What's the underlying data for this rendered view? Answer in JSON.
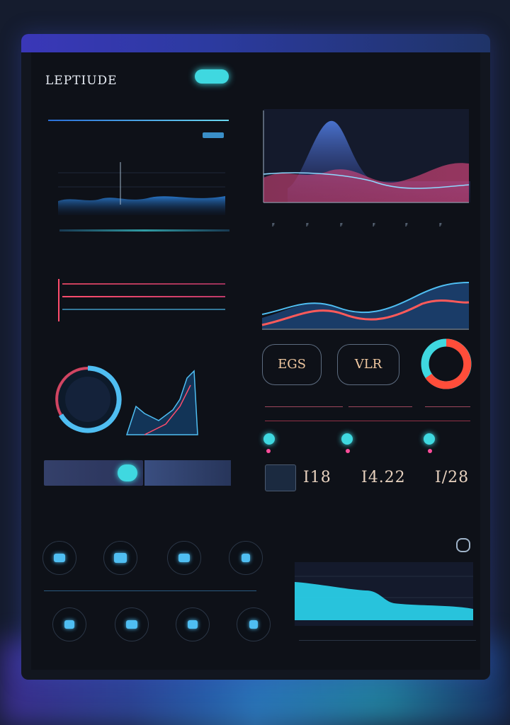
{
  "app": {
    "logo": "LEPTIUDE",
    "top_button": "",
    "colors": {
      "accent": "#3fd8e0",
      "pink": "#ff4d6d",
      "blue": "#4fbef2"
    }
  },
  "nav": {
    "items": [
      "",
      "",
      "",
      "",
      ""
    ]
  },
  "left": {
    "section_title": "",
    "card1_title": "",
    "card1_badge": "",
    "list_title": "",
    "list_right": "",
    "gauge_title": "",
    "gauge_right": "",
    "gauge_center": [
      "",
      ""
    ],
    "gauge_axis": [
      "",
      "",
      ""
    ],
    "action_bar": {
      "left_label": "",
      "right_label": ""
    },
    "tabs": [
      "",
      "",
      "",
      ""
    ],
    "icons_title": "",
    "icons_row1": [
      "",
      "",
      "",
      ""
    ],
    "icons_row2": [
      "",
      "",
      "",
      ""
    ]
  },
  "right": {
    "chart1_ticks": [
      "F",
      "F",
      "F",
      "F",
      "F",
      "F"
    ],
    "kpis": [
      {
        "value": "EGS",
        "sub": ""
      },
      {
        "value": "VLR",
        "sub": ""
      },
      {
        "value": "",
        "sub": ""
      }
    ],
    "stats": [
      {
        "label": "",
        "value": ""
      },
      {
        "label": "",
        "value": ""
      },
      {
        "label": "",
        "value": ""
      }
    ],
    "numbers": [
      "I18",
      "I4.22",
      "I/28"
    ],
    "bottom_tag": "",
    "bottom_tabs": [
      "",
      "",
      ""
    ],
    "table_rows": [
      [
        "",
        "",
        "",
        "",
        ""
      ],
      [
        "",
        "",
        "",
        "",
        ""
      ],
      [
        "",
        "",
        "",
        "",
        ""
      ],
      [
        "",
        "",
        "",
        "",
        ""
      ]
    ]
  }
}
